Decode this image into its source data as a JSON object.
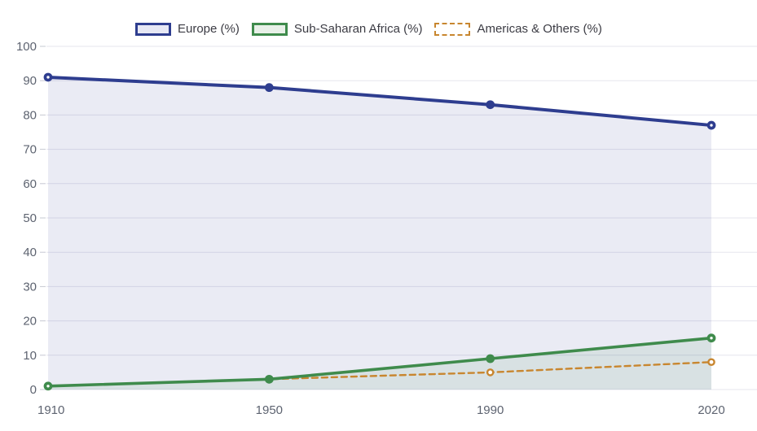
{
  "legend": {
    "items": [
      {
        "label": "Europe (%)",
        "color": "#2e3d8f",
        "fill": "#e7e8f4",
        "style": "solid"
      },
      {
        "label": "Sub-Saharan Africa (%)",
        "color": "#3f8b4c",
        "fill": "#e8f0e8",
        "style": "solid"
      },
      {
        "label": "Americas & Others (%)",
        "color": "#c8862f",
        "fill": "#ffffff",
        "style": "dashed"
      }
    ]
  },
  "chart_data": {
    "type": "line",
    "title": "",
    "categories": [
      "1910",
      "1950",
      "1990",
      "2020"
    ],
    "series": [
      {
        "name": "Europe (%)",
        "values": [
          91,
          88,
          83,
          77
        ],
        "color": "#2e3d8f",
        "area": true,
        "area_fill": "rgba(46,61,143,0.10)",
        "line_style": "solid"
      },
      {
        "name": "Sub-Saharan Africa (%)",
        "values": [
          1,
          3,
          9,
          15
        ],
        "color": "#3f8b4c",
        "area": true,
        "area_fill": "rgba(61,139,77,0.10)",
        "line_style": "solid"
      },
      {
        "name": "Americas & Others (%)",
        "values": [
          1,
          3,
          5,
          8
        ],
        "color": "#c8862f",
        "area": false,
        "area_fill": "",
        "line_style": "dashed"
      }
    ],
    "xlabel": "",
    "ylabel": "",
    "ylim": [
      0,
      100
    ],
    "yticks": [
      0,
      10,
      20,
      30,
      40,
      50,
      60,
      70,
      80,
      90,
      100
    ],
    "grid": true,
    "legend_position": "top"
  },
  "colors": {
    "gridline": "#e5e5ee",
    "tick": "#c6c8d2",
    "axis_text": "#5d6370",
    "background": "#ffffff"
  }
}
